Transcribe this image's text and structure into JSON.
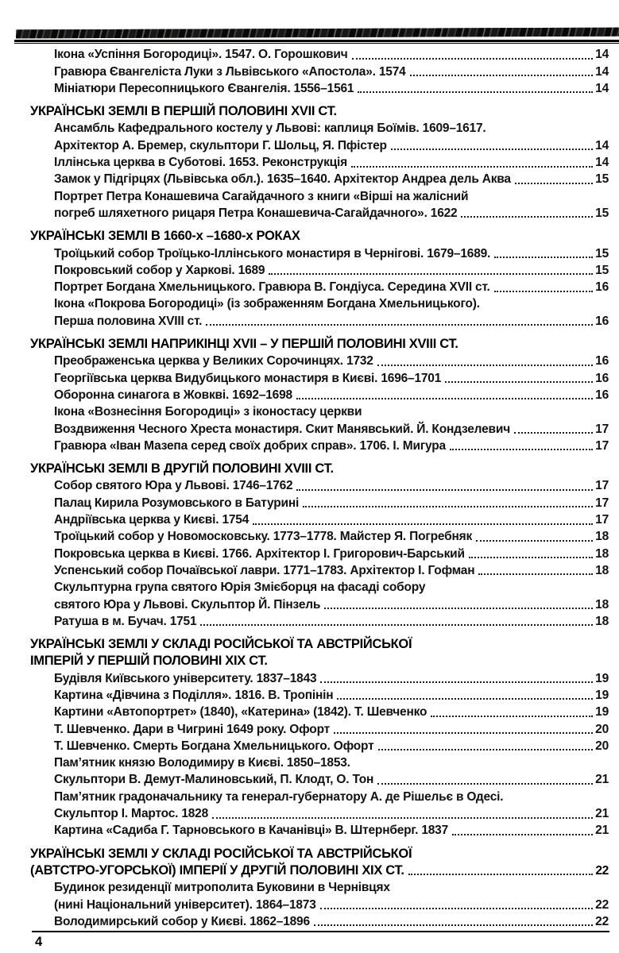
{
  "colors": {
    "ink": "#111111",
    "rule": "#000000",
    "header_bar": "#1c1c1c"
  },
  "page": {
    "footer_page_number": "4"
  },
  "toc": {
    "rows": [
      {
        "type": "entry",
        "text": "Ікона «Успіння Богородиці». 1547. О. Горошкович",
        "page": "14"
      },
      {
        "type": "entry",
        "text": "Гравюра Євангеліста Луки з Львівського «Апостола». 1574",
        "page": "14"
      },
      {
        "type": "entry",
        "text": "Мініатюри Пересопницького Євангелія. 1556–1561",
        "page": "14"
      },
      {
        "type": "heading",
        "text": "УКРАЇНСЬКІ ЗЕМЛІ В ПЕРШІЙ ПОЛОВИНІ XVII СТ.",
        "page": null
      },
      {
        "type": "entry",
        "text": "Ансамбль Кафедрального костелу у Львові: каплиця Боїмів. 1609–1617.",
        "page": null
      },
      {
        "type": "entry",
        "text": "Архітектор А. Бремер, скульптори Г. Шольц, Я. Пфістер",
        "page": "14"
      },
      {
        "type": "entry",
        "text": "Іллінська церква в Суботові. 1653. Реконструкція",
        "page": "14"
      },
      {
        "type": "entry",
        "text": "Замок у Підгірцях (Львівська обл.). 1635–1640. Архітектор Андреа дель Аква",
        "page": "15"
      },
      {
        "type": "entry",
        "text": "Портрет Петра Конашевича Сагайдачного з книги «Вірші на жалісний",
        "page": null
      },
      {
        "type": "entry",
        "text": "погреб шляхетного рицаря Петра Конашевича-Сагайдачного». 1622",
        "page": "15"
      },
      {
        "type": "heading",
        "text": "УКРАЇНСЬКІ ЗЕМЛІ В 1660-х –1680-х РОКАХ",
        "page": null
      },
      {
        "type": "entry",
        "text": "Троїцький собор Троїцько-Іллінського монастиря в Чернігові. 1679–1689.",
        "page": "15"
      },
      {
        "type": "entry",
        "text": "Покровський собор у Харкові. 1689",
        "page": "15"
      },
      {
        "type": "entry",
        "text": "Портрет Богдана Хмельницького. Гравюра В. Гондіуса. Середина XVII ст.",
        "page": "16"
      },
      {
        "type": "entry",
        "text": "Ікона «Покрова Богородиці» (із зображенням Богдана Хмельницького).",
        "page": null
      },
      {
        "type": "entry",
        "text": "Перша половина XVIII ст.",
        "page": "16"
      },
      {
        "type": "heading",
        "text": "УКРАЇНСЬКІ ЗЕМЛІ НАПРИКІНЦІ XVII – У ПЕРШІЙ ПОЛОВИНІ XVIII СТ.",
        "page": null
      },
      {
        "type": "entry",
        "text": "Преображенська церква у Великих Сорочинцях. 1732",
        "page": "16"
      },
      {
        "type": "entry",
        "text": "Георгіївська церква Видубицького монастиря в Києві. 1696–1701",
        "page": "16"
      },
      {
        "type": "entry",
        "text": "Оборонна синагога в Жовкві. 1692–1698",
        "page": "16"
      },
      {
        "type": "entry",
        "text": "Ікона «Вознесіння Богородиці» з іконостасу церкви",
        "page": null
      },
      {
        "type": "entry",
        "text": "Воздвиження Чесного Хреста монастиря. Скит Манявський. Й. Кондзелевич",
        "page": "17"
      },
      {
        "type": "entry",
        "text": "Гравюра «Іван Мазепа серед своїх добрих справ». 1706. І. Мигура",
        "page": "17"
      },
      {
        "type": "heading",
        "text": "УКРАЇНСЬКІ ЗЕМЛІ В ДРУГІЙ ПОЛОВИНІ XVIII СТ.",
        "page": null
      },
      {
        "type": "entry",
        "text": "Собор святого Юра у Львові. 1746–1762",
        "page": "17"
      },
      {
        "type": "entry",
        "text": "Палац Кирила Розумовського в Батурині",
        "page": "17"
      },
      {
        "type": "entry",
        "text": "Андріївська церква у Києві. 1754",
        "page": "17"
      },
      {
        "type": "entry",
        "text": "Троїцький собор у Новомосковську. 1773–1778. Майстер Я. Погребняк",
        "page": "18"
      },
      {
        "type": "entry",
        "text": "Покровська церква в Києві. 1766. Архітектор І. Григорович-Барський",
        "page": "18"
      },
      {
        "type": "entry",
        "text": "Успенський собор Почаївської лаври. 1771–1783. Архітектор І. Гофман",
        "page": "18"
      },
      {
        "type": "entry",
        "text": "Скульптурна група святого Юрія Змієборця на фасаді собору",
        "page": null
      },
      {
        "type": "entry",
        "text": "святого Юра у Львові. Скульптор Й. Пінзель",
        "page": "18"
      },
      {
        "type": "entry",
        "text": "Ратуша в м. Бучач. 1751",
        "page": "18"
      },
      {
        "type": "heading",
        "text": "УКРАЇНСЬКІ ЗЕМЛІ У СКЛАДІ РОСІЙСЬКОЇ ТА АВСТРІЙСЬКОЇ",
        "page": null
      },
      {
        "type": "heading",
        "text": "ІМПЕРІЙ У ПЕРШІЙ ПОЛОВИНІ XIX СТ.",
        "page": null
      },
      {
        "type": "entry",
        "text": "Будівля Київського університету. 1837–1843",
        "page": "19"
      },
      {
        "type": "entry",
        "text": "Картина «Дівчина з Поділля». 1816. В. Тропінін",
        "page": "19"
      },
      {
        "type": "entry",
        "text": "Картини «Автопортрет» (1840), «Катерина» (1842). Т. Шевченко",
        "page": "19"
      },
      {
        "type": "entry",
        "text": "Т. Шевченко. Дари в Чигрині 1649 року. Офорт",
        "page": "20"
      },
      {
        "type": "entry",
        "text": "Т. Шевченко. Смерть Богдана Хмельницького. Офорт",
        "page": "20"
      },
      {
        "type": "entry",
        "text": "Пам’ятник князю Володимиру в Києві. 1850–1853.",
        "page": null
      },
      {
        "type": "entry",
        "text": "Скульптори В. Демут-Малиновський, П. Клодт, О. Тон",
        "page": "21"
      },
      {
        "type": "entry",
        "text": "Пам’ятник градоначальнику та генерал-губернатору А. де Рішельє в Одесі.",
        "page": null
      },
      {
        "type": "entry",
        "text": "Скульптор І. Мартос. 1828",
        "page": "21"
      },
      {
        "type": "entry",
        "text": "Картина «Садиба Г. Тарновського в Качанівці» В. Штернберг. 1837",
        "page": "21"
      },
      {
        "type": "heading",
        "text": "УКРАЇНСЬКІ ЗЕМЛІ У СКЛАДІ РОСІЙСЬКОЇ ТА АВСТРІЙСЬКОЇ",
        "page": null
      },
      {
        "type": "heading",
        "text": "(АВТСТРО-УГОРСЬКОЇ) ІМПЕРІЇ У ДРУГІЙ ПОЛОВИНІ XIX СТ.",
        "page": "22"
      },
      {
        "type": "entry",
        "text": "Будинок резиденції митрополита Буковини в Чернівцях",
        "page": null
      },
      {
        "type": "entry",
        "text": "(нині Національний університет). 1864–1873",
        "page": "22"
      },
      {
        "type": "entry",
        "text": "Володимирський собор у Києві. 1862–1896",
        "page": "22"
      }
    ]
  }
}
